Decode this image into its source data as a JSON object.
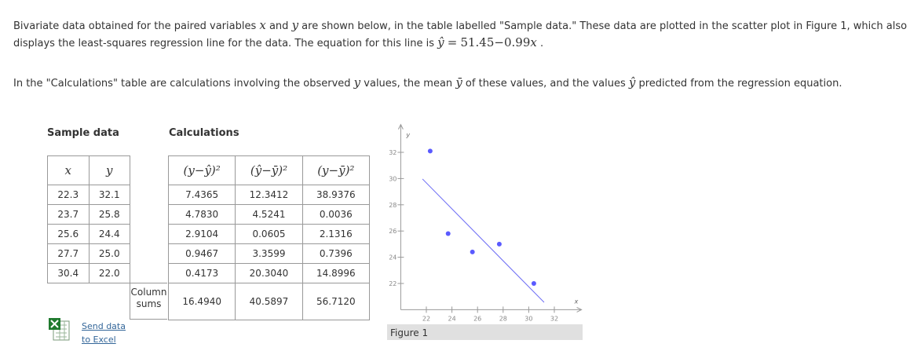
{
  "intro": {
    "s1": "Bivariate data obtained for the paired variables ",
    "x": "x",
    "and": " and ",
    "y": "y",
    "s2": " are shown below, in the table labelled \"Sample data.\" These data are plotted in the scatter plot in Figure 1, which also displays the least-squares regression line for the data. The equation for this line is ",
    "s3": " .",
    "p2a": "In the \"Calculations\" table are calculations involving the observed ",
    "p2b": " values, the mean ",
    "p2c": " of these values, and the values ",
    "p2d": " predicted from the regression equation.",
    "y_bar": "ȳ",
    "y_hat": "ŷ"
  },
  "equation": {
    "lhs": "ŷ",
    "eq": "=",
    "intercept": 51.45,
    "minus": "−",
    "slope": 0.99,
    "var": "x"
  },
  "sample": {
    "title": "Sample data",
    "headers": [
      "x",
      "y"
    ],
    "rows": [
      [
        "22.3",
        "32.1"
      ],
      [
        "23.7",
        "25.8"
      ],
      [
        "25.6",
        "24.4"
      ],
      [
        "27.7",
        "25.0"
      ],
      [
        "30.4",
        "22.0"
      ]
    ]
  },
  "calculations": {
    "title": "Calculations",
    "headers": [
      "(y−ŷ)²",
      "(ŷ−ȳ)²",
      "(y−ȳ)²"
    ],
    "rows": [
      [
        "7.4365",
        "12.3412",
        "38.9376"
      ],
      [
        "4.7830",
        "4.5241",
        "0.0036"
      ],
      [
        "2.9104",
        "0.0605",
        "2.1316"
      ],
      [
        "0.9467",
        "3.3599",
        "0.7396"
      ],
      [
        "0.4173",
        "20.3040",
        "14.8996"
      ]
    ],
    "sums_label": "Column sums",
    "sums": [
      "16.4940",
      "40.5897",
      "56.7120"
    ]
  },
  "excel_link": "Send data to Excel",
  "figure": {
    "caption": "Figure 1",
    "xlabel": "x",
    "ylabel": "y",
    "xlim": [
      20,
      34
    ],
    "ylim": [
      20,
      34
    ],
    "xticks": [
      22,
      24,
      26,
      28,
      30,
      32
    ],
    "yticks": [
      22,
      24,
      26,
      28,
      30,
      32
    ],
    "line_x": [
      21.7,
      31.2
    ],
    "point_color": "#5a5aff",
    "line_color": "#6b6bf5"
  }
}
